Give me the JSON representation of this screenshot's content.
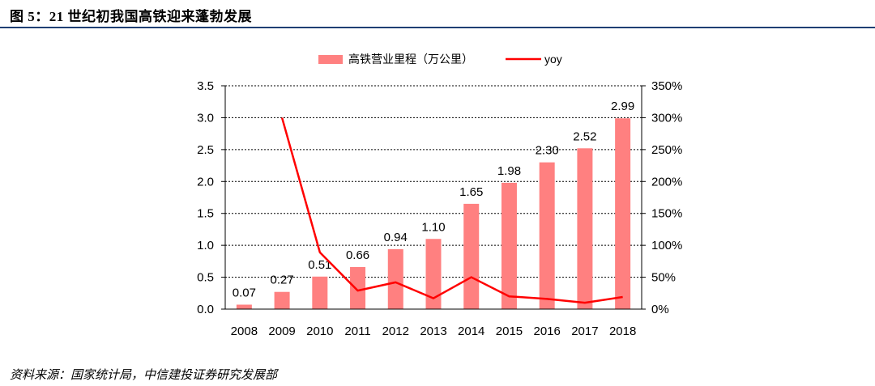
{
  "figure": {
    "title": "图 5：21 世纪初我国高铁迎来蓬勃发展",
    "source": "资料来源：国家统计局，中信建投证券研究发展部"
  },
  "chart_data": {
    "type": "bar",
    "categories": [
      "2008",
      "2009",
      "2010",
      "2011",
      "2012",
      "2013",
      "2014",
      "2015",
      "2016",
      "2017",
      "2018"
    ],
    "series": [
      {
        "name": "高铁营业里程（万公里）",
        "type": "bar",
        "axis": "left",
        "color": "#ff8080",
        "values": [
          0.07,
          0.27,
          0.51,
          0.66,
          0.94,
          1.1,
          1.65,
          1.98,
          2.3,
          2.52,
          2.99
        ],
        "labels": [
          "0.07",
          "0.27",
          "0.51",
          "0.66",
          "0.94",
          "1.10",
          "1.65",
          "1.98",
          "2.30",
          "2.52",
          "2.99"
        ]
      },
      {
        "name": "yoy",
        "type": "line",
        "axis": "right",
        "color": "#ff0000",
        "values": [
          null,
          300,
          89,
          29,
          42,
          17,
          50,
          20,
          16,
          10,
          19
        ]
      }
    ],
    "ylim_left": [
      0,
      3.5
    ],
    "ylim_right": [
      0,
      350
    ],
    "yticks_left": [
      "0.0",
      "0.5",
      "1.0",
      "1.5",
      "2.0",
      "2.5",
      "3.0",
      "3.5"
    ],
    "yticks_right": [
      "0%",
      "50%",
      "100%",
      "150%",
      "200%",
      "250%",
      "300%",
      "350%"
    ],
    "grid": "horizontal dashed",
    "legend_position": "top-center"
  }
}
